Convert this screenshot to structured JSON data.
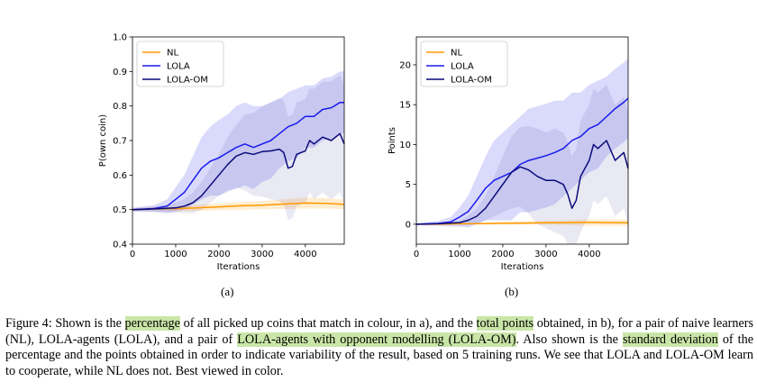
{
  "chart_data": [
    {
      "type": "line",
      "panel_label": "(a)",
      "xlabel": "Iterations",
      "ylabel": "P(own coin)",
      "xlim": [
        0,
        4900
      ],
      "ylim": [
        0.4,
        1.0
      ],
      "xticks": [
        0,
        1000,
        2000,
        3000,
        4000
      ],
      "yticks": [
        0.4,
        0.5,
        0.6,
        0.7,
        0.8,
        0.9,
        1.0
      ],
      "ytick_labels": [
        "0.4",
        "0.5",
        "0.6",
        "0.7",
        "0.8",
        "0.9",
        "1.0"
      ],
      "legend_position": "top-left",
      "shaded": "standard deviation",
      "series": [
        {
          "name": "NL",
          "color": "#ff9900",
          "x": [
            0,
            500,
            1000,
            1500,
            2000,
            2500,
            3000,
            3500,
            4000,
            4500,
            4900
          ],
          "y": [
            0.5,
            0.502,
            0.503,
            0.505,
            0.508,
            0.511,
            0.513,
            0.516,
            0.519,
            0.518,
            0.515
          ],
          "std": [
            0.003,
            0.005,
            0.007,
            0.009,
            0.01,
            0.011,
            0.012,
            0.014,
            0.016,
            0.015,
            0.014
          ]
        },
        {
          "name": "LOLA",
          "color": "#1a1aee",
          "x": [
            0,
            500,
            800,
            1000,
            1200,
            1400,
            1600,
            1800,
            2000,
            2200,
            2400,
            2600,
            2800,
            3000,
            3200,
            3400,
            3600,
            3800,
            4000,
            4200,
            4400,
            4600,
            4800,
            4900
          ],
          "y": [
            0.5,
            0.503,
            0.51,
            0.53,
            0.55,
            0.585,
            0.62,
            0.64,
            0.65,
            0.665,
            0.68,
            0.69,
            0.68,
            0.69,
            0.7,
            0.72,
            0.74,
            0.75,
            0.77,
            0.77,
            0.79,
            0.795,
            0.81,
            0.81
          ],
          "std": [
            0.005,
            0.01,
            0.02,
            0.035,
            0.05,
            0.07,
            0.09,
            0.1,
            0.11,
            0.11,
            0.12,
            0.12,
            0.12,
            0.11,
            0.11,
            0.1,
            0.1,
            0.1,
            0.09,
            0.09,
            0.09,
            0.09,
            0.09,
            0.09
          ]
        },
        {
          "name": "LOLA-OM",
          "color": "#0a0a7a",
          "x": [
            0,
            500,
            1000,
            1200,
            1400,
            1600,
            1800,
            2000,
            2200,
            2400,
            2600,
            2800,
            3000,
            3200,
            3400,
            3500,
            3600,
            3700,
            3800,
            4000,
            4100,
            4200,
            4400,
            4600,
            4800,
            4900
          ],
          "y": [
            0.5,
            0.502,
            0.505,
            0.51,
            0.52,
            0.54,
            0.57,
            0.6,
            0.63,
            0.655,
            0.665,
            0.66,
            0.668,
            0.67,
            0.675,
            0.665,
            0.62,
            0.625,
            0.66,
            0.67,
            0.7,
            0.69,
            0.71,
            0.7,
            0.72,
            0.69
          ],
          "std": [
            0.005,
            0.007,
            0.015,
            0.02,
            0.03,
            0.04,
            0.05,
            0.06,
            0.08,
            0.09,
            0.11,
            0.12,
            0.13,
            0.14,
            0.15,
            0.15,
            0.15,
            0.15,
            0.15,
            0.15,
            0.15,
            0.16,
            0.16,
            0.17,
            0.17,
            0.17
          ]
        }
      ]
    },
    {
      "type": "line",
      "panel_label": "(b)",
      "xlabel": "Iterations",
      "ylabel": "Points",
      "xlim": [
        0,
        4900
      ],
      "ylim": [
        -2.5,
        23.5
      ],
      "xticks": [
        0,
        1000,
        2000,
        3000,
        4000
      ],
      "yticks": [
        0,
        5,
        10,
        15,
        20
      ],
      "ytick_labels": [
        "0",
        "5",
        "10",
        "15",
        "20"
      ],
      "legend_position": "top-left",
      "shaded": "standard deviation",
      "series": [
        {
          "name": "NL",
          "color": "#ff9900",
          "x": [
            0,
            500,
            1000,
            1500,
            2000,
            2500,
            3000,
            3500,
            4000,
            4500,
            4900
          ],
          "y": [
            0.0,
            0.0,
            0.05,
            0.08,
            0.12,
            0.15,
            0.18,
            0.2,
            0.22,
            0.2,
            0.18
          ],
          "std": [
            0.05,
            0.05,
            0.08,
            0.1,
            0.15,
            0.2,
            0.25,
            0.3,
            0.4,
            0.4,
            0.4
          ]
        },
        {
          "name": "LOLA",
          "color": "#1a1aee",
          "x": [
            0,
            500,
            800,
            1000,
            1200,
            1400,
            1600,
            1800,
            2000,
            2200,
            2400,
            2600,
            2800,
            3000,
            3200,
            3400,
            3600,
            3800,
            4000,
            4200,
            4400,
            4600,
            4800,
            4900
          ],
          "y": [
            0.0,
            0.1,
            0.3,
            0.9,
            1.6,
            3.0,
            4.5,
            5.5,
            6.0,
            6.5,
            7.5,
            8.0,
            8.3,
            8.6,
            9.0,
            9.5,
            10.5,
            11.0,
            12.0,
            12.5,
            13.5,
            14.5,
            15.3,
            15.8
          ],
          "std": [
            0.1,
            0.3,
            0.6,
            1.2,
            2.0,
            3.0,
            4.0,
            5.0,
            5.5,
            6.0,
            6.0,
            6.5,
            6.5,
            6.5,
            6.5,
            6.0,
            6.0,
            5.5,
            5.5,
            5.5,
            5.0,
            5.0,
            5.0,
            5.0
          ]
        },
        {
          "name": "LOLA-OM",
          "color": "#0a0a7a",
          "x": [
            0,
            500,
            1000,
            1200,
            1400,
            1600,
            1800,
            2000,
            2200,
            2400,
            2600,
            2800,
            3000,
            3200,
            3400,
            3500,
            3600,
            3700,
            3800,
            4000,
            4100,
            4200,
            4400,
            4600,
            4800,
            4900
          ],
          "y": [
            0.0,
            0.05,
            0.2,
            0.5,
            1.0,
            2.0,
            3.5,
            5.0,
            6.5,
            7.2,
            6.8,
            6.0,
            5.5,
            5.5,
            5.0,
            3.8,
            2.0,
            3.0,
            6.0,
            8.0,
            10.0,
            9.5,
            10.5,
            8.0,
            9.0,
            7.0
          ],
          "std": [
            0.05,
            0.1,
            0.3,
            0.6,
            1.0,
            1.5,
            2.5,
            3.5,
            4.5,
            5.0,
            5.5,
            6.0,
            6.0,
            6.5,
            6.5,
            6.5,
            6.5,
            6.5,
            7.0,
            7.0,
            7.0,
            7.0,
            7.0,
            7.0,
            7.0,
            7.0
          ]
        }
      ]
    }
  ],
  "caption": {
    "seg1": "Figure 4: Shown is the ",
    "hl1": "percentage",
    "seg2": " of all picked up coins that match in colour, in a), and the ",
    "hl2": "total points",
    "seg3": " obtained, in b), for a pair of naive learners (NL), LOLA-agents (LOLA), and a pair of ",
    "hl3": "LOLA-agents with opponent modelling (LOLA-OM)",
    "seg4": ". Also shown is the ",
    "hl4": "standard deviation",
    "seg5": " of the percentage and the points obtained in order to indicate variability of the result, based on 5 training runs. We see that LOLA and LOLA-OM learn to cooperate, while NL does not. Best viewed in color."
  }
}
